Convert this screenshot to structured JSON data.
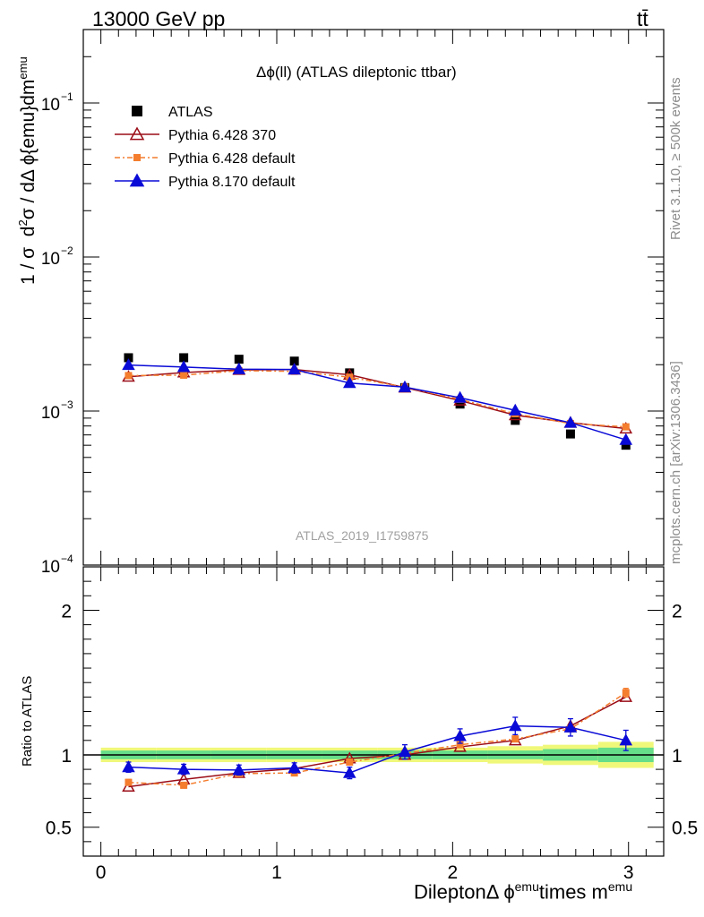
{
  "header": {
    "left": "13000 GeV pp",
    "right": "tt̄"
  },
  "side_labels": {
    "rivet": "Rivet 3.1.10, ≥ 500k events",
    "mcplots": "mcplots.cern.ch [arXiv:1306.3436]"
  },
  "colors": {
    "atlas": "#000000",
    "py6_370": "#9b0d17",
    "py6_default": "#f47d2e",
    "py8": "#0a0ad7",
    "band_inner": "#66dd88",
    "band_outer": "#f0f87a"
  },
  "chart_data": [
    {
      "type": "line",
      "title": "Δϕ(ll) (ATLAS dileptonic ttbar)",
      "watermark": "ATLAS_2019_I1759875",
      "ylabel": "1 / σ  d²σ / dΔ ϕ{emu}dm^emu",
      "yscale": "log",
      "ylim": [
        0.0001,
        0.3
      ],
      "yticks": [
        0.0001,
        0.001,
        0.01,
        0.1
      ],
      "ytick_labels": [
        {
          "base": "10",
          "exp": "−4"
        },
        {
          "base": "10",
          "exp": "−3"
        },
        {
          "base": "10",
          "exp": "−2"
        },
        {
          "base": "10",
          "exp": "−1"
        }
      ],
      "xlim": [
        -0.1,
        3.2
      ],
      "x": [
        0.157,
        0.471,
        0.785,
        1.1,
        1.414,
        1.728,
        2.042,
        2.356,
        2.67,
        2.985
      ],
      "legend_position": "top-left",
      "series": [
        {
          "name": "ATLAS",
          "marker": "square",
          "values": [
            0.00222,
            0.00222,
            0.00217,
            0.00211,
            0.00177,
            0.00142,
            0.00111,
            0.00087,
            0.00071,
            0.0006
          ]
        },
        {
          "name": "Pythia 6.428 370",
          "marker": "triangle-open",
          "values": [
            0.00167,
            0.00178,
            0.00185,
            0.00186,
            0.00172,
            0.00142,
            0.00117,
            0.00094,
            0.00084,
            0.00077
          ]
        },
        {
          "name": "Pythia 6.428 default",
          "marker": "square-small",
          "values": [
            0.0017,
            0.00171,
            0.00183,
            0.00181,
            0.00166,
            0.00143,
            0.00119,
            0.00096,
            0.00083,
            0.00079
          ]
        },
        {
          "name": "Pythia 8.170 default",
          "marker": "triangle",
          "values": [
            0.00199,
            0.00193,
            0.00187,
            0.00186,
            0.00152,
            0.00143,
            0.00122,
            0.00101,
            0.00084,
            0.00065
          ]
        }
      ]
    },
    {
      "type": "line",
      "ylabel": "Ratio to ATLAS",
      "xlabel_main": "Dilepton",
      "xlabel_symbol": "Δ ϕ",
      "xlabel_sup1": "emu",
      "xlabel_mid": "times m",
      "xlabel_sup2": "emu",
      "ylim": [
        0.3,
        2.3
      ],
      "yticks": [
        0.5,
        1,
        2
      ],
      "ytick_labels": [
        "0.5",
        "1",
        "2"
      ],
      "xticks": [
        0,
        1,
        2,
        3
      ],
      "xtick_labels": [
        "0",
        "1",
        "2",
        "3"
      ],
      "x": [
        0.157,
        0.471,
        0.785,
        1.1,
        1.414,
        1.728,
        2.042,
        2.356,
        2.67,
        2.985
      ],
      "band": {
        "inner": [
          0.03,
          0.03,
          0.03,
          0.03,
          0.03,
          0.03,
          0.03,
          0.03,
          0.04,
          0.05
        ],
        "outer": [
          0.05,
          0.05,
          0.05,
          0.05,
          0.05,
          0.05,
          0.05,
          0.06,
          0.07,
          0.09
        ]
      },
      "series": [
        {
          "name": "Pythia 6.428 370",
          "values": [
            0.78,
            0.83,
            0.875,
            0.905,
            0.975,
            1.0,
            1.055,
            1.1,
            1.2,
            1.4
          ],
          "errors": [
            0,
            0,
            0,
            0,
            0,
            0,
            0,
            0,
            0,
            0
          ]
        },
        {
          "name": "Pythia 6.428 default",
          "values": [
            0.81,
            0.79,
            0.87,
            0.875,
            0.95,
            1.01,
            1.07,
            1.11,
            1.18,
            1.43
          ],
          "errors": [
            0.02,
            0.02,
            0.02,
            0.02,
            0.02,
            0.02,
            0.02,
            0.02,
            0.02,
            0.03
          ]
        },
        {
          "name": "Pythia 8.170 default",
          "values": [
            0.915,
            0.9,
            0.895,
            0.91,
            0.875,
            1.02,
            1.13,
            1.2,
            1.19,
            1.1
          ],
          "errors": [
            0.035,
            0.035,
            0.035,
            0.035,
            0.04,
            0.05,
            0.05,
            0.06,
            0.06,
            0.07
          ]
        }
      ]
    }
  ]
}
